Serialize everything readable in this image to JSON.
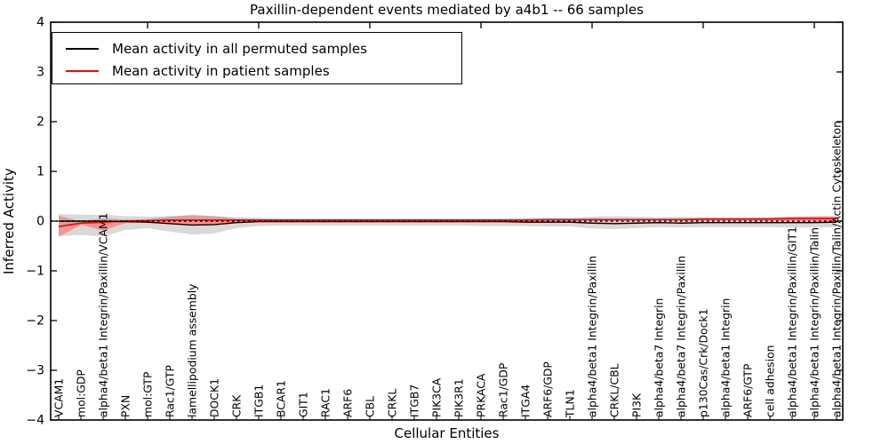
{
  "figure": {
    "title": "Paxillin-dependent events mediated by a4b1 -- 66 samples",
    "xlabel": "Cellular Entities",
    "ylabel": "Inferred Activity"
  },
  "legend": {
    "entries": [
      {
        "label": "Mean activity in all permuted samples",
        "color": "#000000"
      },
      {
        "label": "Mean activity in patient samples",
        "color": "#ff0000"
      }
    ]
  },
  "chart_data": {
    "type": "line",
    "title": "Paxillin-dependent events mediated by a4b1 -- 66 samples",
    "xlabel": "Cellular Entities",
    "ylabel": "Inferred Activity",
    "ylim": [
      -4,
      4
    ],
    "yticks": [
      4,
      3,
      2,
      1,
      0,
      -1,
      -2,
      -3,
      -4
    ],
    "top_tick_indices": [
      4,
      9,
      14,
      19,
      24,
      29,
      34
    ],
    "grid": false,
    "legend_position": "upper left",
    "categories": [
      "VCAM1",
      "mol:GDP",
      "alpha4/beta1 Integrin/Paxillin/VCAM1",
      "PXN",
      "mol:GTP",
      "Rac1/GTP",
      "lamellipodium assembly",
      "DOCK1",
      "CRK",
      "ITGB1",
      "BCAR1",
      "GIT1",
      "RAC1",
      "ARF6",
      "CBL",
      "CRKL",
      "ITGB7",
      "PIK3CA",
      "PIK3R1",
      "PRKACA",
      "Rac1/GDP",
      "ITGA4",
      "ARF6/GDP",
      "TLN1",
      "alpha4/beta1 Integrin/Paxillin",
      "CRKL/CBL",
      "PI3K",
      "alpha4/beta7 Integrin",
      "alpha4/beta7 Integrin/Paxillin",
      "p130Cas/Crk/Dock1",
      "alpha4/beta1 Integrin",
      "ARF6/GTP",
      "cell adhesion",
      "alpha4/beta1 Integrin/Paxillin/GIT1",
      "alpha4/beta1 Integrin/Paxillin/Talin",
      "alpha4/beta1 Integrin/Paxillin/Talin/Actin Cytoskeleton"
    ],
    "zero_line": {
      "value": 0,
      "style": "dotted",
      "color": "#000000"
    },
    "series": [
      {
        "name": "Mean activity in all permuted samples",
        "color": "#000000",
        "style": "solid",
        "values": [
          0.0,
          0.0,
          0.0,
          -0.01,
          -0.02,
          -0.05,
          -0.08,
          -0.07,
          -0.03,
          -0.01,
          -0.01,
          -0.01,
          -0.01,
          -0.01,
          -0.01,
          -0.01,
          -0.01,
          -0.01,
          -0.01,
          -0.01,
          -0.01,
          -0.02,
          -0.02,
          -0.02,
          -0.04,
          -0.05,
          -0.04,
          -0.03,
          -0.04,
          -0.03,
          -0.03,
          -0.03,
          -0.03,
          -0.03,
          -0.03,
          -0.02
        ]
      },
      {
        "name": "Mean activity in patient samples",
        "color": "#ff0000",
        "style": "solid",
        "values": [
          -0.11,
          -0.04,
          -0.02,
          0.0,
          0.01,
          0.02,
          0.02,
          0.02,
          0.02,
          0.02,
          0.02,
          0.02,
          0.02,
          0.02,
          0.02,
          0.02,
          0.02,
          0.02,
          0.02,
          0.02,
          0.02,
          0.02,
          0.03,
          0.03,
          0.03,
          0.03,
          0.03,
          0.03,
          0.03,
          0.04,
          0.04,
          0.04,
          0.04,
          0.05,
          0.05,
          0.05
        ]
      }
    ],
    "bands": [
      {
        "name": "permuted-samples-range",
        "color": "#000000",
        "opacity": 0.15,
        "upper": [
          0.14,
          0.13,
          0.13,
          0.1,
          0.09,
          0.1,
          0.11,
          0.1,
          0.08,
          0.07,
          0.06,
          0.06,
          0.06,
          0.06,
          0.06,
          0.06,
          0.06,
          0.06,
          0.06,
          0.06,
          0.06,
          0.07,
          0.07,
          0.07,
          0.09,
          0.1,
          0.09,
          0.08,
          0.09,
          0.08,
          0.08,
          0.08,
          0.08,
          0.09,
          0.09,
          0.09
        ],
        "lower": [
          -0.3,
          -0.28,
          -0.31,
          -0.18,
          -0.14,
          -0.21,
          -0.27,
          -0.25,
          -0.14,
          -0.1,
          -0.09,
          -0.09,
          -0.09,
          -0.09,
          -0.09,
          -0.09,
          -0.09,
          -0.09,
          -0.09,
          -0.1,
          -0.1,
          -0.1,
          -0.11,
          -0.11,
          -0.15,
          -0.16,
          -0.14,
          -0.12,
          -0.13,
          -0.12,
          -0.12,
          -0.12,
          -0.12,
          -0.13,
          -0.13,
          -0.12
        ]
      },
      {
        "name": "patient-samples-range",
        "color": "#ff0000",
        "opacity": 0.28,
        "upper": [
          0.11,
          -0.01,
          0.06,
          0.03,
          0.04,
          0.09,
          0.13,
          0.1,
          0.05,
          0.04,
          0.03,
          0.03,
          0.03,
          0.03,
          0.03,
          0.03,
          0.03,
          0.03,
          0.03,
          0.03,
          0.03,
          0.04,
          0.04,
          0.04,
          0.05,
          0.05,
          0.05,
          0.05,
          0.05,
          0.06,
          0.06,
          0.06,
          0.07,
          0.09,
          0.1,
          0.1
        ],
        "lower": [
          -0.32,
          -0.07,
          -0.19,
          -0.04,
          -0.02,
          -0.05,
          -0.08,
          -0.06,
          -0.02,
          -0.01,
          -0.01,
          -0.01,
          -0.01,
          -0.01,
          -0.01,
          -0.01,
          -0.01,
          -0.01,
          -0.01,
          -0.01,
          -0.01,
          0.0,
          0.0,
          0.0,
          0.0,
          0.0,
          0.01,
          0.01,
          0.01,
          0.01,
          0.01,
          0.01,
          0.01,
          0.0,
          -0.01,
          -0.01
        ]
      }
    ]
  }
}
